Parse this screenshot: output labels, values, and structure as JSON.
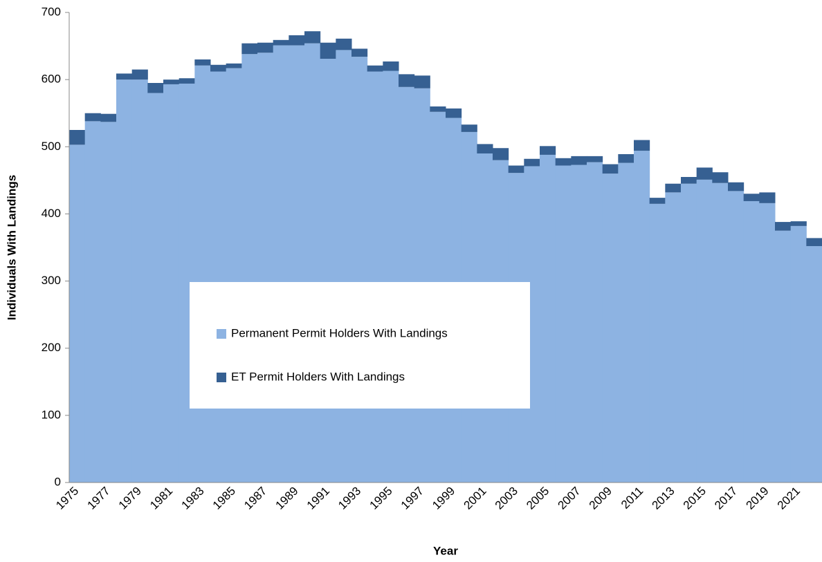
{
  "chart_data": {
    "type": "stacked_bar",
    "x_label": "Year",
    "y_label": "Individuals With Landings",
    "categories": [
      "1975",
      null,
      "1977",
      null,
      "1979",
      null,
      "1981",
      null,
      "1983",
      null,
      "1985",
      null,
      "1987",
      null,
      "1989",
      null,
      "1991",
      null,
      "1993",
      null,
      "1995",
      null,
      "1997",
      null,
      "1999",
      null,
      "2001",
      null,
      "2003",
      null,
      "2005",
      null,
      "2007",
      null,
      "2009",
      null,
      "2011",
      null,
      "2013",
      null,
      "2015",
      null,
      "2017",
      null,
      "2019",
      null,
      "2021",
      null
    ],
    "series": [
      {
        "name": "Permanent Permit Holders With Landings",
        "color": "#8db3e2",
        "values": [
          503,
          538,
          537,
          600,
          600,
          580,
          593,
          594,
          621,
          612,
          617,
          638,
          640,
          651,
          651,
          654,
          631,
          644,
          634,
          612,
          613,
          589,
          587,
          552,
          543,
          522,
          490,
          480,
          461,
          471,
          488,
          472,
          473,
          477,
          460,
          476,
          494,
          415,
          432,
          445,
          451,
          446,
          434,
          419,
          416,
          375,
          382,
          352
        ]
      },
      {
        "name": "ET Permit Holders With Landings",
        "color": "#366092",
        "values": [
          22,
          12,
          12,
          9,
          15,
          15,
          7,
          8,
          9,
          10,
          7,
          16,
          15,
          8,
          15,
          18,
          24,
          17,
          12,
          9,
          14,
          19,
          19,
          8,
          14,
          11,
          14,
          18,
          11,
          11,
          13,
          11,
          13,
          9,
          14,
          13,
          16,
          9,
          13,
          10,
          18,
          16,
          13,
          11,
          16,
          13,
          7,
          12
        ]
      }
    ],
    "ylim": [
      0,
      700
    ],
    "yticks": [
      0,
      100,
      200,
      300,
      400,
      500,
      600,
      700
    ],
    "grid": false
  }
}
